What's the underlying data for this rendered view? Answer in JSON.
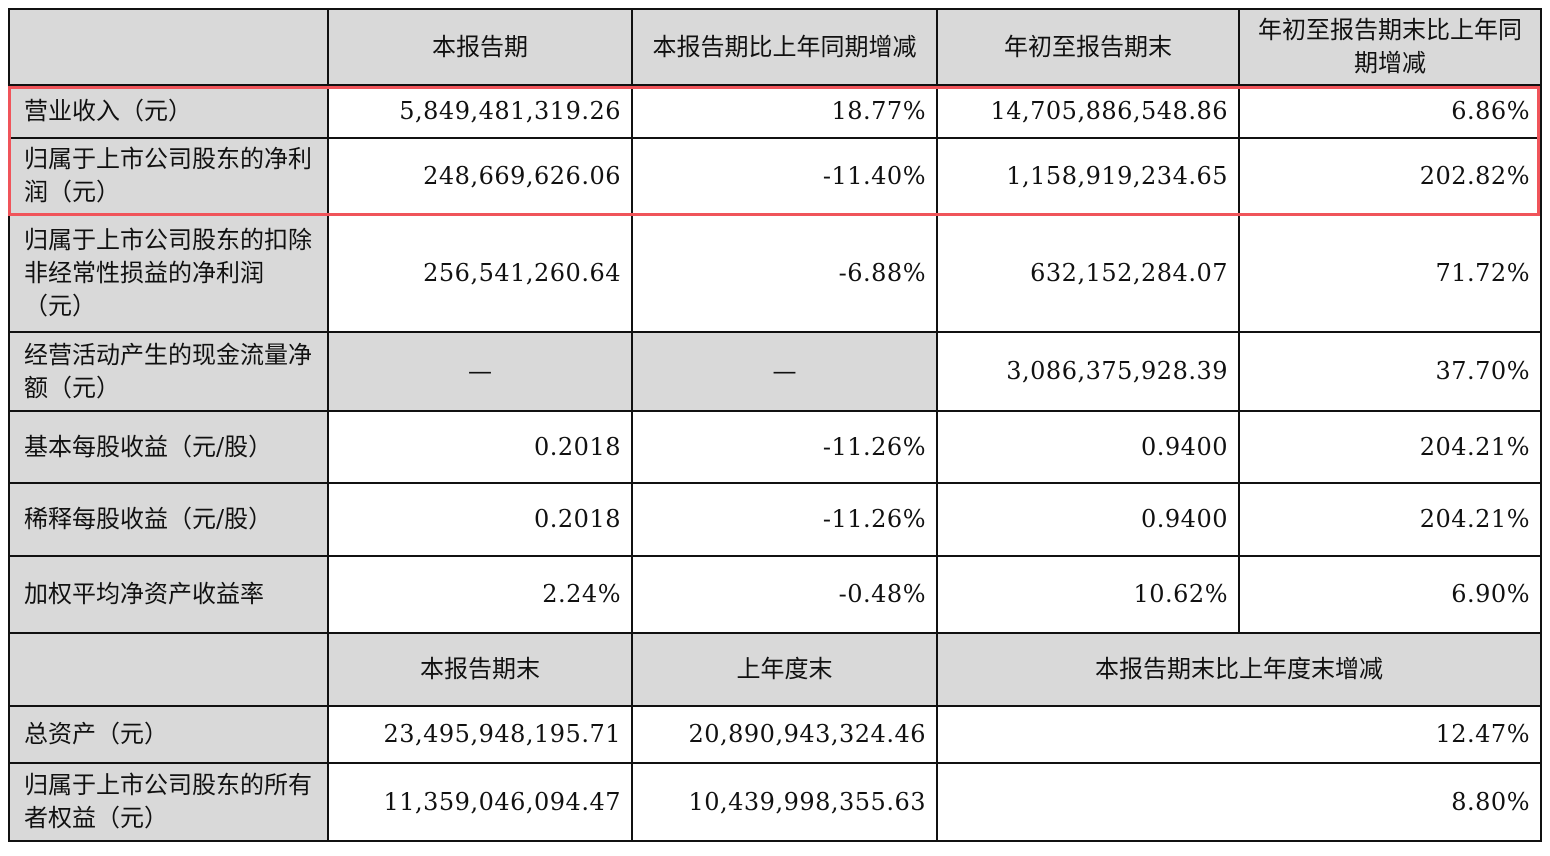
{
  "header": {
    "columns": [
      "",
      "本报告期",
      "本报告期比上年同期增减",
      "年初至报告期末",
      "年初至报告期末比上年同期增减"
    ]
  },
  "rows": [
    {
      "label": "营业收入（元）",
      "values": [
        "5,849,481,319.26",
        "18.77%",
        "14,705,886,548.86",
        "6.86%"
      ]
    },
    {
      "label": "归属于上市公司股东的净利润（元）",
      "values": [
        "248,669,626.06",
        "-11.40%",
        "1,158,919,234.65",
        "202.82%"
      ]
    },
    {
      "label": "归属于上市公司股东的扣除非经常性损益的净利润（元）",
      "values": [
        "256,541,260.64",
        "-6.88%",
        "632,152,284.07",
        "71.72%"
      ]
    },
    {
      "label": "经营活动产生的现金流量净额（元）",
      "values": [
        "—",
        "—",
        "3,086,375,928.39",
        "37.70%"
      ]
    },
    {
      "label": "基本每股收益（元/股）",
      "values": [
        "0.2018",
        "-11.26%",
        "0.9400",
        "204.21%"
      ]
    },
    {
      "label": "稀释每股收益（元/股）",
      "values": [
        "0.2018",
        "-11.26%",
        "0.9400",
        "204.21%"
      ]
    },
    {
      "label": "加权平均净资产收益率",
      "values": [
        "2.24%",
        "-0.48%",
        "10.62%",
        "6.90%"
      ]
    }
  ],
  "header2": {
    "columns": [
      "",
      "本报告期末",
      "上年度末",
      "本报告期末比上年度末增减"
    ]
  },
  "rows2": [
    {
      "label": "总资产（元）",
      "values": [
        "23,495,948,195.71",
        "20,890,943,324.46",
        "12.47%"
      ]
    },
    {
      "label": "归属于上市公司股东的所有者权益（元）",
      "values": [
        "11,359,046,094.47",
        "10,439,998,355.63",
        "8.80%"
      ]
    }
  ],
  "colors": {
    "header_bg": "#d9d9d9",
    "highlight_border": "#f0545a"
  }
}
